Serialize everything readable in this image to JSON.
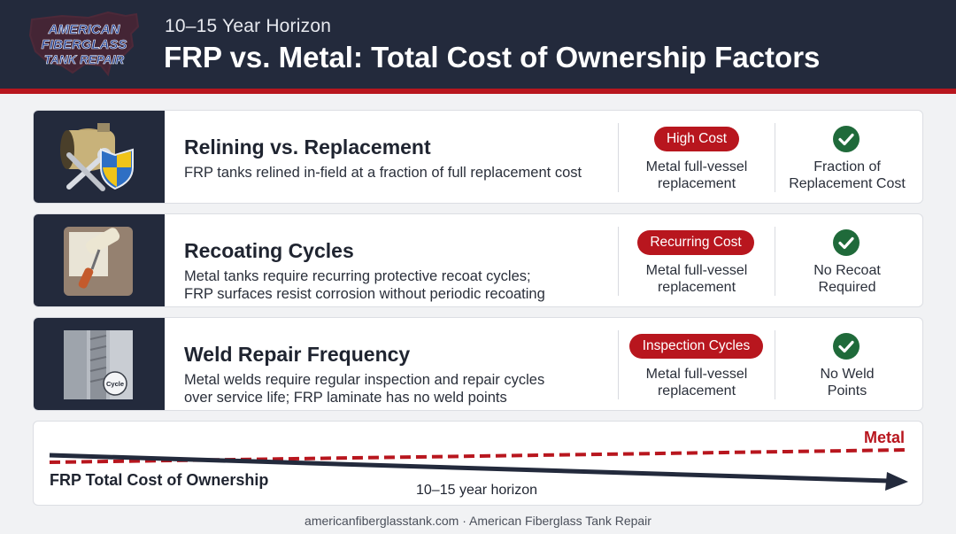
{
  "header": {
    "logo_lines": [
      "AMERICAN",
      "FIBERGLASS",
      "TANK REPAIR"
    ],
    "subtitle": "10–15 Year Horizon",
    "title": "FRP vs. Metal: Total Cost of Ownership Factors"
  },
  "rows": [
    {
      "icon": "wrench-shield-icon",
      "title": "Relining vs. Replacement",
      "description": [
        "FRP tanks relined in-field at a fraction of full replacement cost"
      ],
      "metal_badge": "High Cost",
      "metal_text": [
        "Metal full-vessel",
        "replacement"
      ],
      "frp_text": [
        "Fraction of",
        "Replacement Cost"
      ]
    },
    {
      "icon": "paint-roller-icon",
      "title": "Recoating Cycles",
      "description": [
        "Metal tanks require recurring protective recoat cycles;",
        "FRP surfaces resist corrosion without periodic recoating"
      ],
      "metal_badge": "Recurring Cost",
      "metal_text": [
        "Metal full-vessel",
        "replacement"
      ],
      "frp_text": [
        "No Recoat",
        "Required"
      ]
    },
    {
      "icon": "weld-seam-icon",
      "icon_label": "Cycle",
      "title": "Weld Repair Frequency",
      "description": [
        "Metal welds require regular inspection and repair cycles",
        "over service life; FRP laminate has no weld points"
      ],
      "metal_badge": "Inspection Cycles",
      "metal_text": [
        "Metal full-vessel",
        "replacement"
      ],
      "frp_text": [
        "No Weld",
        "Points"
      ]
    }
  ],
  "timeline": {
    "metal_label": "Metal",
    "frp_label": "FRP Total Cost of Ownership",
    "horizon_label": "10–15 year horizon"
  },
  "footer": "americanfiberglasstank.com · American Fiberglass Tank Repair",
  "colors": {
    "navy": "#232a3c",
    "accent_red": "#b8161e",
    "check_green": "#1f6a3a",
    "background": "#f1f2f4"
  }
}
